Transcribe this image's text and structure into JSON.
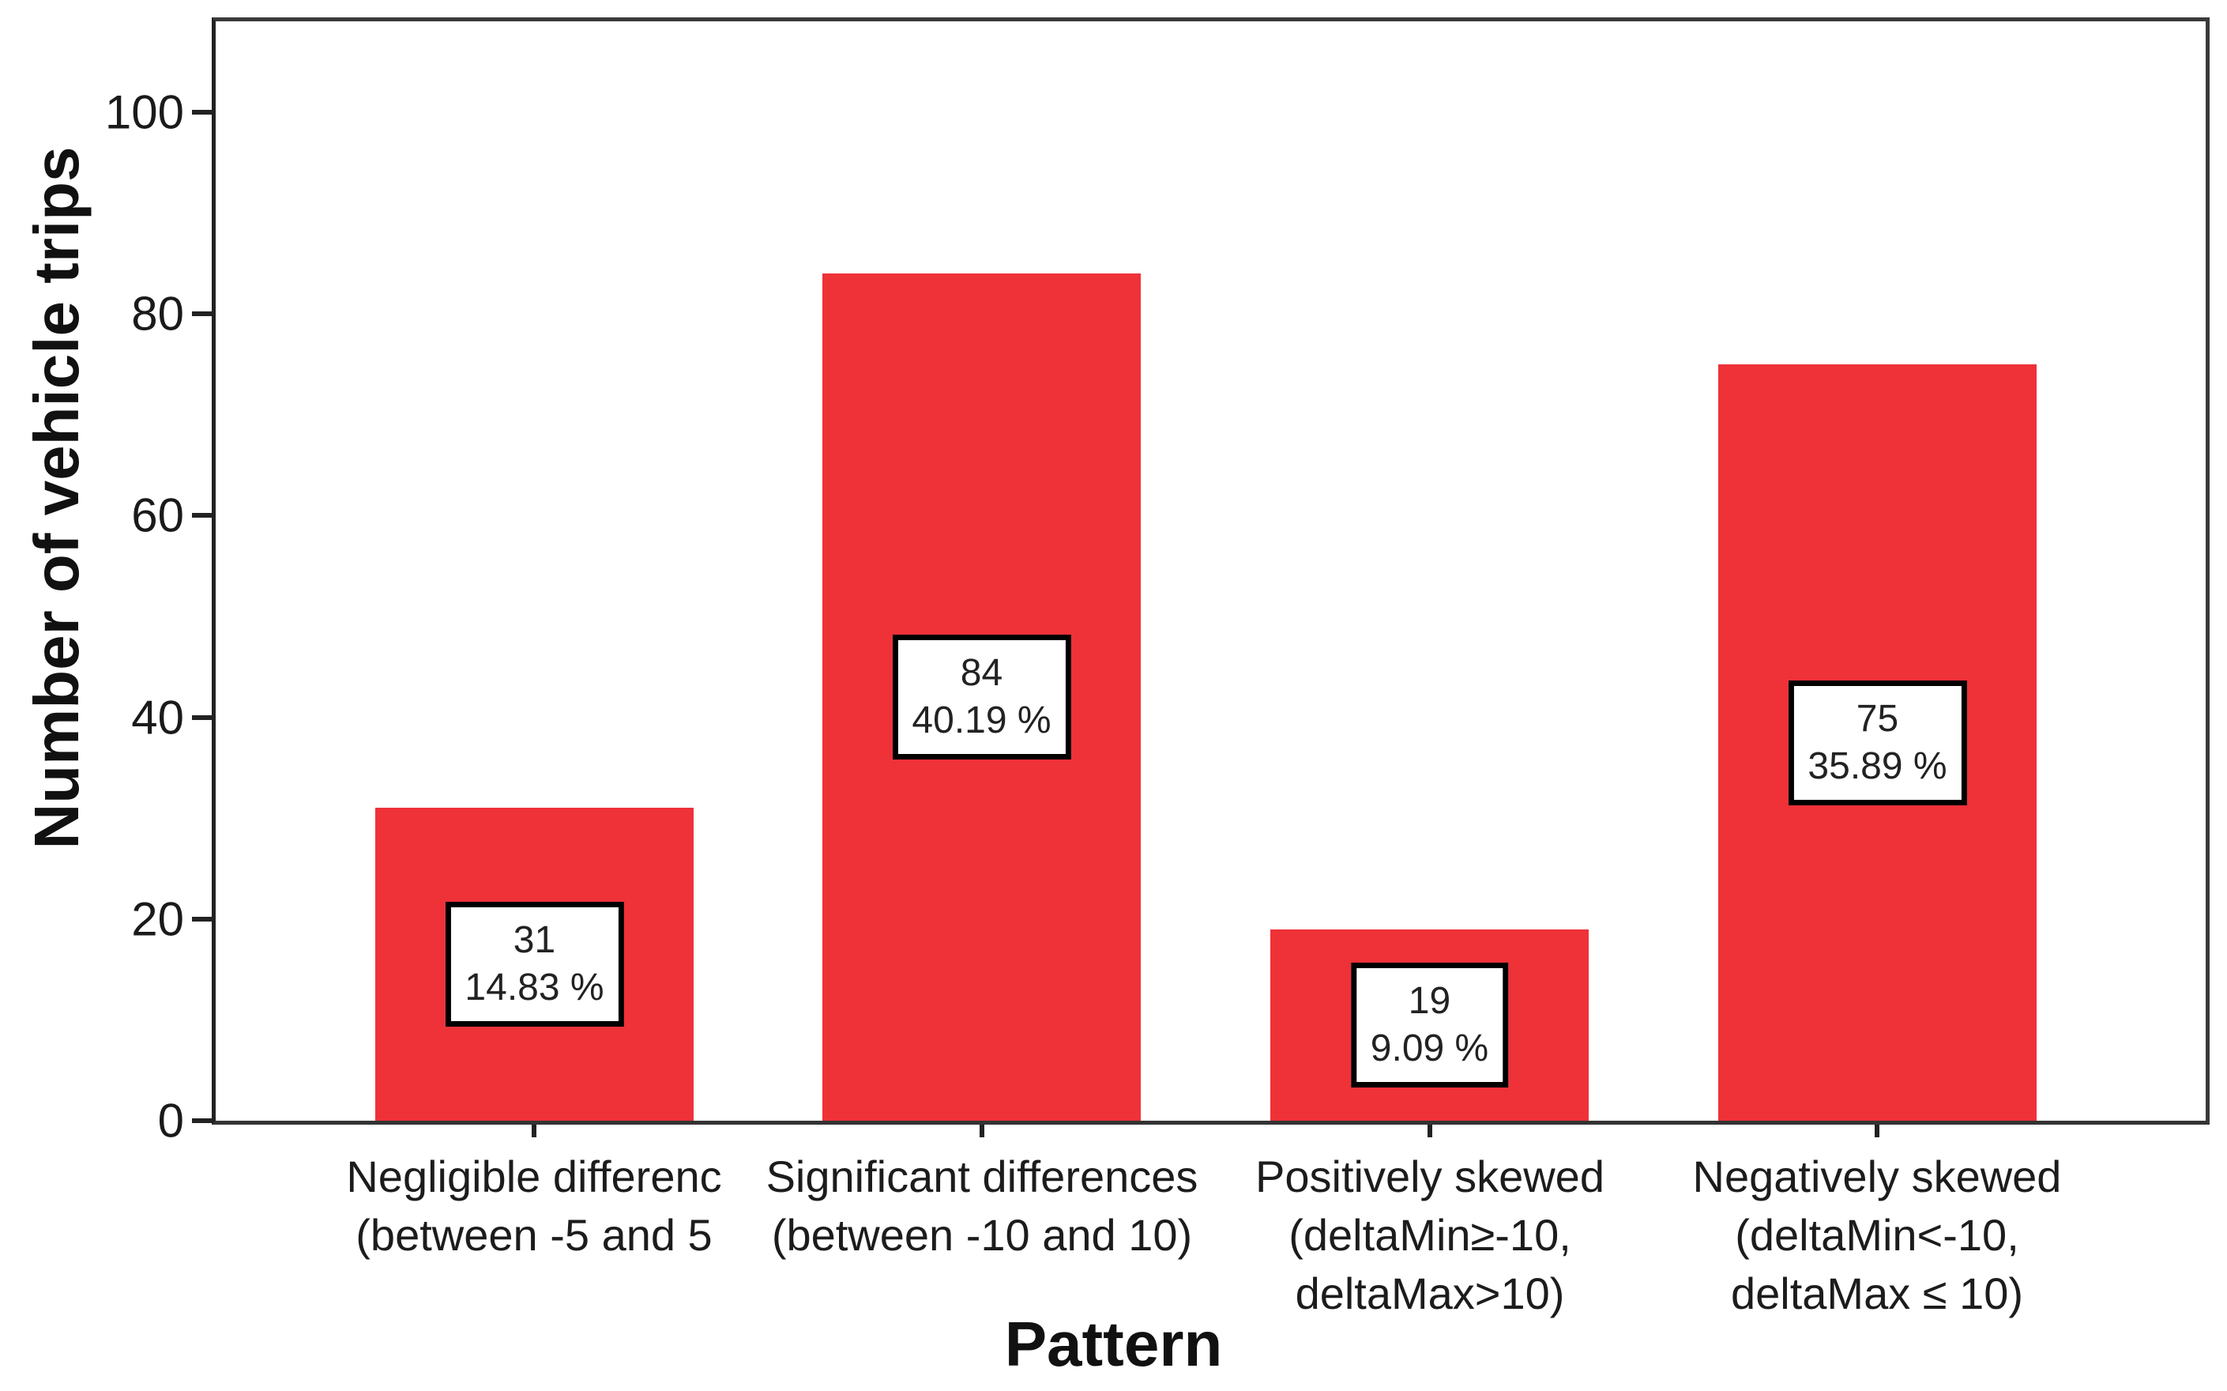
{
  "chart_data": {
    "type": "bar",
    "title": "",
    "xlabel": "Pattern",
    "ylabel": "Number of vehicle trips",
    "ylim": [
      0,
      109
    ],
    "yticks": [
      0,
      20,
      40,
      60,
      80,
      100
    ],
    "grid": false,
    "legend": false,
    "bar_color": "#EF3138",
    "categories": [
      {
        "label_lines": [
          "Negligible differenc",
          "(between -5 and 5"
        ],
        "value": 31,
        "count_label": "31",
        "pct_label": "14.83 %"
      },
      {
        "label_lines": [
          "Significant differences",
          "(between -10 and 10)"
        ],
        "value": 84,
        "count_label": "84",
        "pct_label": "40.19 %"
      },
      {
        "label_lines": [
          "Positively skewed",
          "(deltaMin≥-10,",
          "deltaMax>10)"
        ],
        "value": 19,
        "count_label": "19",
        "pct_label": "9.09 %"
      },
      {
        "label_lines": [
          "Negatively skewed",
          "(deltaMin<-10,",
          "deltaMax ≤ 10)"
        ],
        "value": 75,
        "count_label": "75",
        "pct_label": "35.89 %"
      }
    ]
  }
}
